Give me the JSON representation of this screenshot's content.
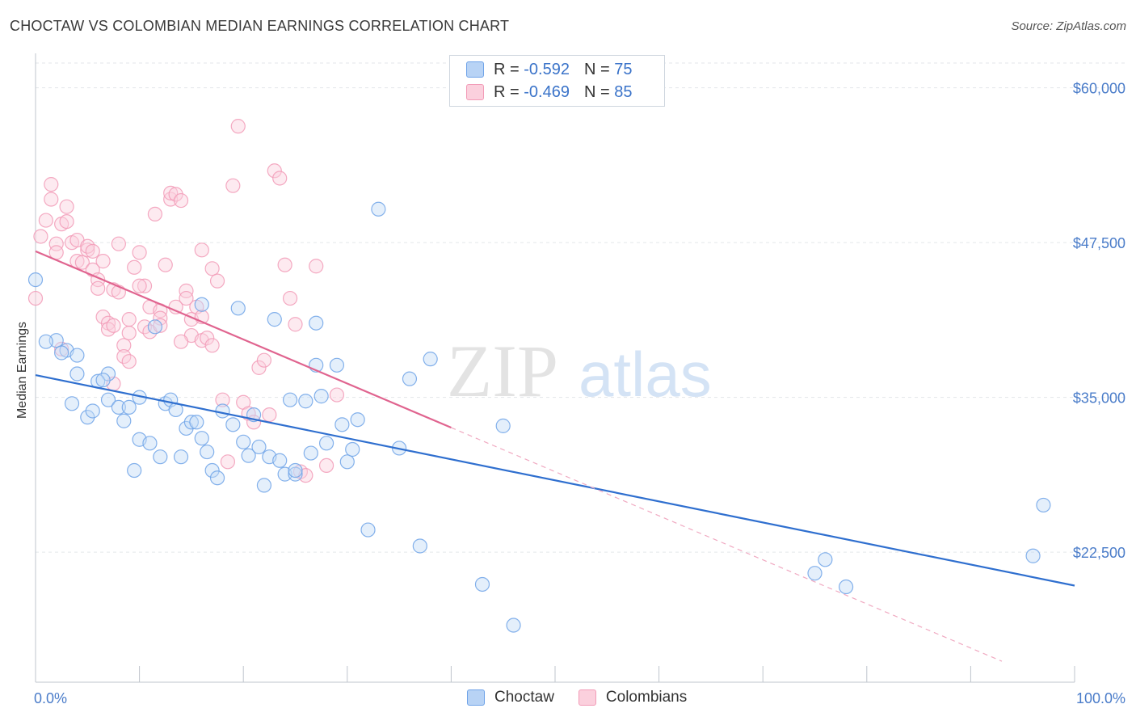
{
  "title": "CHOCTAW VS COLOMBIAN MEDIAN EARNINGS CORRELATION CHART",
  "source": "Source: ZipAtlas.com",
  "watermark": {
    "zip": "ZIP",
    "atlas": "atlas"
  },
  "legend": {
    "rows": [
      {
        "r_label": "R =",
        "r_value": "-0.592",
        "n_label": "N =",
        "n_value": "75",
        "color": "#6fa3e8"
      },
      {
        "r_label": "R =",
        "r_value": "-0.469",
        "n_label": "N =",
        "n_value": "85",
        "color": "#f29bb7"
      }
    ]
  },
  "bottom_legend": [
    {
      "label": "Choctaw",
      "color": "#6fa3e8"
    },
    {
      "label": "Colombians",
      "color": "#f29bb7"
    }
  ],
  "chart_data": {
    "type": "scatter",
    "ylabel": "Median Earnings",
    "xlim": [
      0,
      100
    ],
    "ylim": [
      12000,
      62000
    ],
    "x_tick_labels": [
      "0.0%",
      "100.0%"
    ],
    "y_ticks": [
      {
        "value": 60000,
        "label": "$60,000"
      },
      {
        "value": 47500,
        "label": "$47,500"
      },
      {
        "value": 35000,
        "label": "$35,000"
      },
      {
        "value": 22500,
        "label": "$22,500"
      }
    ],
    "grid": true,
    "series": [
      {
        "name": "Choctaw",
        "color": "#6fa3e8",
        "line_color": "#2f6fcf",
        "trend": {
          "x0": 0,
          "y0": 36800,
          "x1": 100,
          "y1": 19800,
          "dashed_from": null
        },
        "points": [
          [
            0,
            44500
          ],
          [
            2,
            39600
          ],
          [
            3,
            38800
          ],
          [
            1,
            39500
          ],
          [
            2.5,
            38600
          ],
          [
            4,
            38400
          ],
          [
            4,
            36900
          ],
          [
            7,
            36900
          ],
          [
            3.5,
            34500
          ],
          [
            5,
            33400
          ],
          [
            6,
            36300
          ],
          [
            6.5,
            36400
          ],
          [
            5.5,
            33900
          ],
          [
            7,
            34800
          ],
          [
            8,
            34200
          ],
          [
            8.5,
            33100
          ],
          [
            9,
            34200
          ],
          [
            9.5,
            29100
          ],
          [
            10,
            35000
          ],
          [
            10,
            31600
          ],
          [
            11,
            31300
          ],
          [
            11.5,
            40700
          ],
          [
            12,
            30200
          ],
          [
            12.5,
            34500
          ],
          [
            13,
            34800
          ],
          [
            13.5,
            34000
          ],
          [
            14,
            30200
          ],
          [
            14.5,
            32500
          ],
          [
            15,
            33000
          ],
          [
            15.5,
            33000
          ],
          [
            16,
            31700
          ],
          [
            16.5,
            30600
          ],
          [
            17,
            29100
          ],
          [
            17.5,
            28500
          ],
          [
            16,
            42500
          ],
          [
            18,
            33900
          ],
          [
            19,
            32800
          ],
          [
            19.5,
            42200
          ],
          [
            20,
            31400
          ],
          [
            20.5,
            30300
          ],
          [
            21,
            33600
          ],
          [
            21.5,
            31000
          ],
          [
            22,
            27900
          ],
          [
            22.5,
            30200
          ],
          [
            23,
            41300
          ],
          [
            23.5,
            29900
          ],
          [
            24,
            28800
          ],
          [
            24.5,
            34800
          ],
          [
            25,
            28800
          ],
          [
            25,
            29100
          ],
          [
            26,
            34700
          ],
          [
            26.5,
            30500
          ],
          [
            27,
            37600
          ],
          [
            27.5,
            35100
          ],
          [
            28,
            31300
          ],
          [
            29,
            37600
          ],
          [
            29.5,
            32800
          ],
          [
            30,
            29800
          ],
          [
            30.5,
            30800
          ],
          [
            31,
            33200
          ],
          [
            32,
            24300
          ],
          [
            33,
            50200
          ],
          [
            35,
            30900
          ],
          [
            36,
            36500
          ],
          [
            37,
            23000
          ],
          [
            38,
            38100
          ],
          [
            43,
            19900
          ],
          [
            45,
            32700
          ],
          [
            46,
            16600
          ],
          [
            75,
            20800
          ],
          [
            76,
            21900
          ],
          [
            78,
            19700
          ],
          [
            96,
            22200
          ],
          [
            97,
            26300
          ],
          [
            27,
            41000
          ]
        ]
      },
      {
        "name": "Colombians",
        "color": "#f29bb7",
        "line_color": "#e0648f",
        "trend": {
          "x0": 0,
          "y0": 46800,
          "x1": 100,
          "y1": 11200,
          "solid_until": 40
        },
        "points": [
          [
            0,
            43000
          ],
          [
            0.5,
            48000
          ],
          [
            1,
            49300
          ],
          [
            1.5,
            51000
          ],
          [
            1.5,
            52200
          ],
          [
            2,
            47400
          ],
          [
            2,
            46700
          ],
          [
            2.5,
            49000
          ],
          [
            3,
            49200
          ],
          [
            3,
            50400
          ],
          [
            3.5,
            47500
          ],
          [
            4,
            46000
          ],
          [
            4,
            47700
          ],
          [
            4.5,
            45900
          ],
          [
            5,
            46900
          ],
          [
            5,
            47200
          ],
          [
            5.5,
            46800
          ],
          [
            5.5,
            45300
          ],
          [
            6,
            44500
          ],
          [
            6.5,
            46000
          ],
          [
            6.5,
            41500
          ],
          [
            7,
            41000
          ],
          [
            7,
            40500
          ],
          [
            7.5,
            43700
          ],
          [
            7.5,
            36100
          ],
          [
            8,
            47400
          ],
          [
            8,
            43500
          ],
          [
            8.5,
            39200
          ],
          [
            8.5,
            38300
          ],
          [
            9,
            41300
          ],
          [
            9,
            37900
          ],
          [
            9.5,
            45500
          ],
          [
            10,
            46700
          ],
          [
            10.5,
            40700
          ],
          [
            10.5,
            44000
          ],
          [
            11,
            42300
          ],
          [
            11,
            40300
          ],
          [
            11.5,
            49800
          ],
          [
            12,
            42000
          ],
          [
            12,
            41400
          ],
          [
            12.5,
            45700
          ],
          [
            13,
            51000
          ],
          [
            13,
            51500
          ],
          [
            13.5,
            51400
          ],
          [
            14,
            50900
          ],
          [
            14.5,
            43600
          ],
          [
            14.5,
            43000
          ],
          [
            15,
            41300
          ],
          [
            15,
            40000
          ],
          [
            15.5,
            42300
          ],
          [
            16,
            46900
          ],
          [
            16,
            39600
          ],
          [
            16.5,
            39800
          ],
          [
            17,
            39200
          ],
          [
            17,
            45400
          ],
          [
            17.5,
            44400
          ],
          [
            18,
            34800
          ],
          [
            18.5,
            29800
          ],
          [
            19,
            52100
          ],
          [
            19.5,
            56900
          ],
          [
            20,
            34600
          ],
          [
            20.5,
            33700
          ],
          [
            21,
            33000
          ],
          [
            21.5,
            37400
          ],
          [
            22,
            38000
          ],
          [
            22.5,
            33600
          ],
          [
            23,
            53300
          ],
          [
            23.5,
            52700
          ],
          [
            24,
            45700
          ],
          [
            24.5,
            43000
          ],
          [
            25,
            40900
          ],
          [
            25.5,
            29000
          ],
          [
            26,
            28700
          ],
          [
            27,
            45600
          ],
          [
            28,
            29500
          ],
          [
            29,
            35200
          ],
          [
            6,
            43800
          ],
          [
            7.5,
            40800
          ],
          [
            9,
            40200
          ],
          [
            10,
            44000
          ],
          [
            12,
            40800
          ],
          [
            13.5,
            42300
          ],
          [
            14,
            39500
          ],
          [
            16,
            41500
          ],
          [
            2.5,
            38900
          ]
        ]
      }
    ]
  }
}
